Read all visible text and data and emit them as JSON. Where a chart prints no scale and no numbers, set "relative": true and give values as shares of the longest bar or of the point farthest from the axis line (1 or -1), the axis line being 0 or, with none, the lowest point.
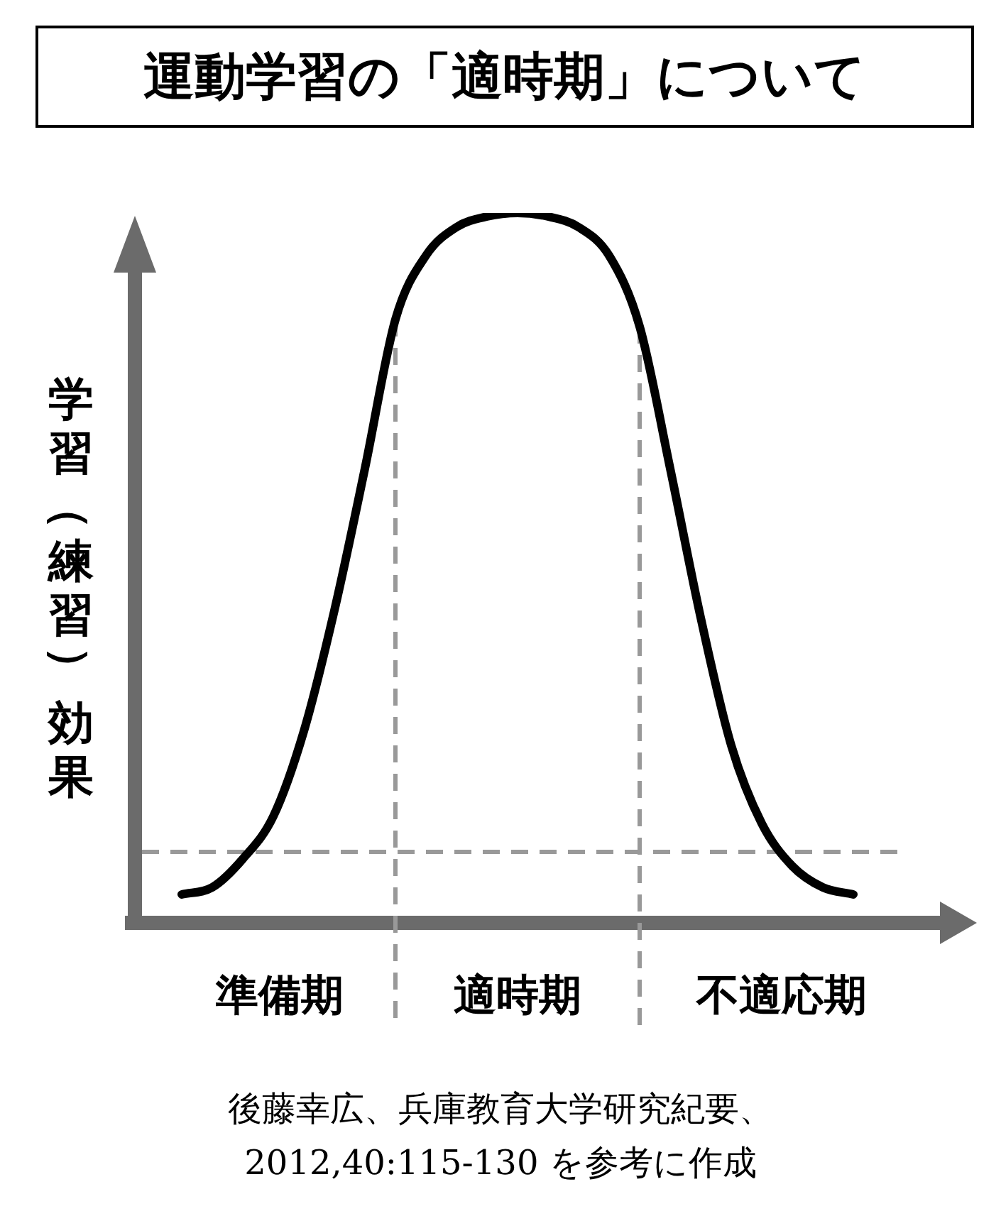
{
  "chart_data": {
    "type": "line",
    "title": "運動学習の「適時期」について",
    "ylabel": "学習（練習）効果",
    "relative": true,
    "color": "#000000",
    "marker": "none",
    "line_style": "solid",
    "categories": [
      null,
      null,
      null,
      null,
      null,
      null,
      null,
      null,
      null,
      null,
      null,
      null,
      null,
      null,
      null,
      null,
      null,
      null,
      null,
      null,
      null,
      null,
      null
    ],
    "values": [
      0.04,
      0.05,
      0.09,
      0.15,
      0.27,
      0.44,
      0.64,
      0.85,
      0.94,
      0.98,
      0.995,
      1.0,
      0.995,
      0.98,
      0.94,
      0.84,
      0.64,
      0.43,
      0.25,
      0.14,
      0.08,
      0.05,
      0.04
    ],
    "ref_lines": [
      {
        "axis": "y",
        "value": 0.1,
        "color": "#999999",
        "line_style": "dashed"
      }
    ],
    "annotations": [
      "準備期",
      "適時期",
      "不適応期",
      "後藤幸広、兵庫教育大学研究紀要、\n2012,40:115-130 を参考に作成"
    ]
  }
}
